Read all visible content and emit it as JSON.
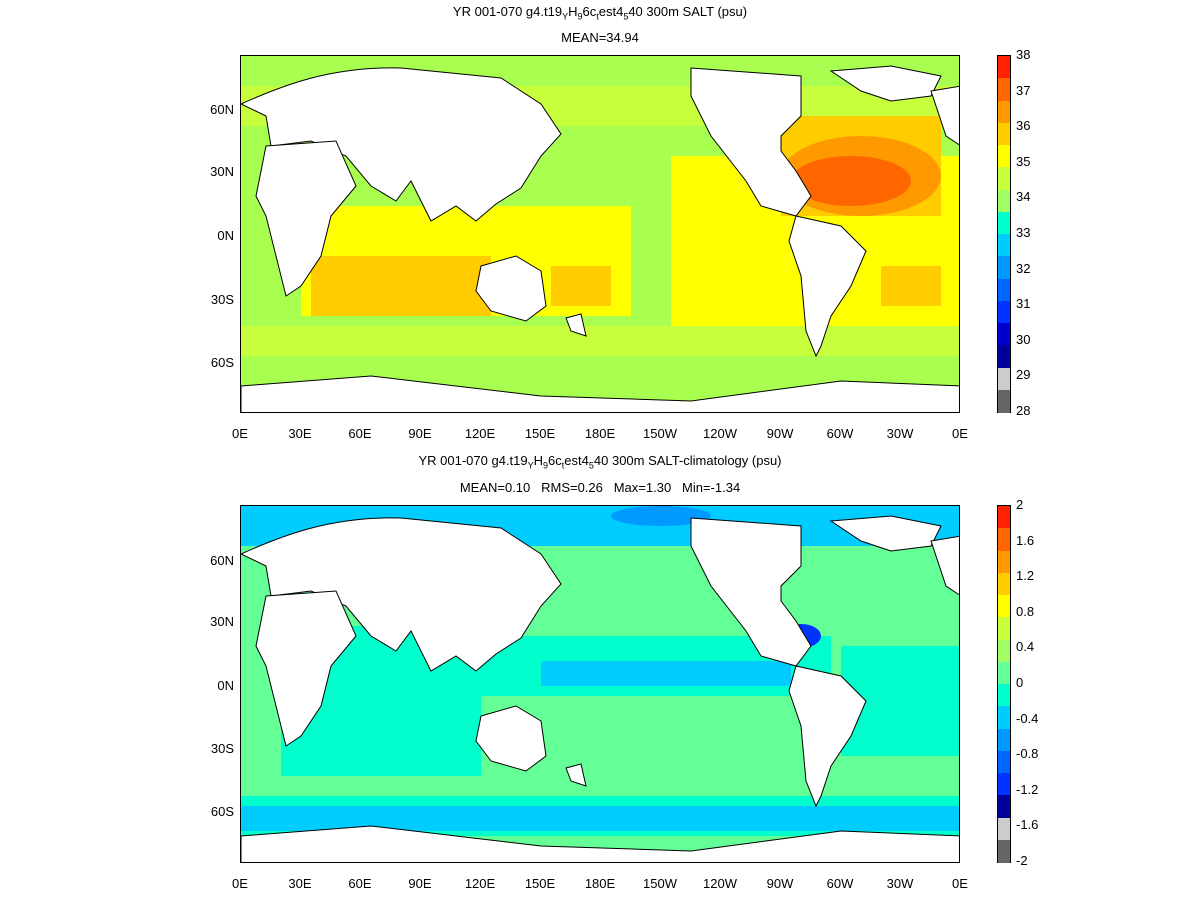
{
  "top": {
    "title_line1": "YR 001-070 g4.t19",
    "title_sub1": "Y",
    "title_mid1": "H",
    "title_sub2": "9",
    "title_mid2": "6c",
    "title_sub3": "t",
    "title_mid3": "est4",
    "title_sub4": "5",
    "title_end": "40 300m SALT (psu)",
    "stats": "MEAN=34.94",
    "colorbar_labels": [
      "38",
      "37",
      "36",
      "35",
      "34",
      "33",
      "32",
      "31",
      "30",
      "29",
      "28"
    ],
    "colorbar_colors": [
      "#ff2200",
      "#ff6600",
      "#ff9900",
      "#ffcc00",
      "#ffff00",
      "#c8ff3c",
      "#a0ff64",
      "#00ffcc",
      "#00ccff",
      "#0099ff",
      "#0066ff",
      "#0033ff",
      "#0000cc",
      "#000099",
      "#cccccc",
      "#666666"
    ]
  },
  "bottom": {
    "title_line1": "YR 001-070 g4.t19",
    "title_sub1": "Y",
    "title_mid1": "H",
    "title_sub2": "9",
    "title_mid2": "6c",
    "title_sub3": "t",
    "title_mid3": "est4",
    "title_sub4": "5",
    "title_end": "40 300m SALT-climatology (psu)",
    "stats": "MEAN=0.10   RMS=0.26   Max=1.30   Min=-1.34",
    "colorbar_labels": [
      "2",
      "1.6",
      "1.2",
      "0.8",
      "0.4",
      "0",
      "-0.4",
      "-0.8",
      "-1.2",
      "-1.6",
      "-2"
    ],
    "colorbar_colors": [
      "#ff2200",
      "#ff6600",
      "#ff9900",
      "#ffcc00",
      "#ffff00",
      "#c8ff3c",
      "#a0ff64",
      "#64ff96",
      "#00ffcc",
      "#00ccff",
      "#0099ff",
      "#0066ff",
      "#0033ff",
      "#000099",
      "#cccccc",
      "#666666"
    ]
  },
  "axes": {
    "lat_labels": [
      "60N",
      "30N",
      "0N",
      "30S",
      "60S"
    ],
    "lon_labels": [
      "0E",
      "30E",
      "60E",
      "90E",
      "120E",
      "150E",
      "180E",
      "150W",
      "120W",
      "90W",
      "60W",
      "30W",
      "0E"
    ]
  }
}
